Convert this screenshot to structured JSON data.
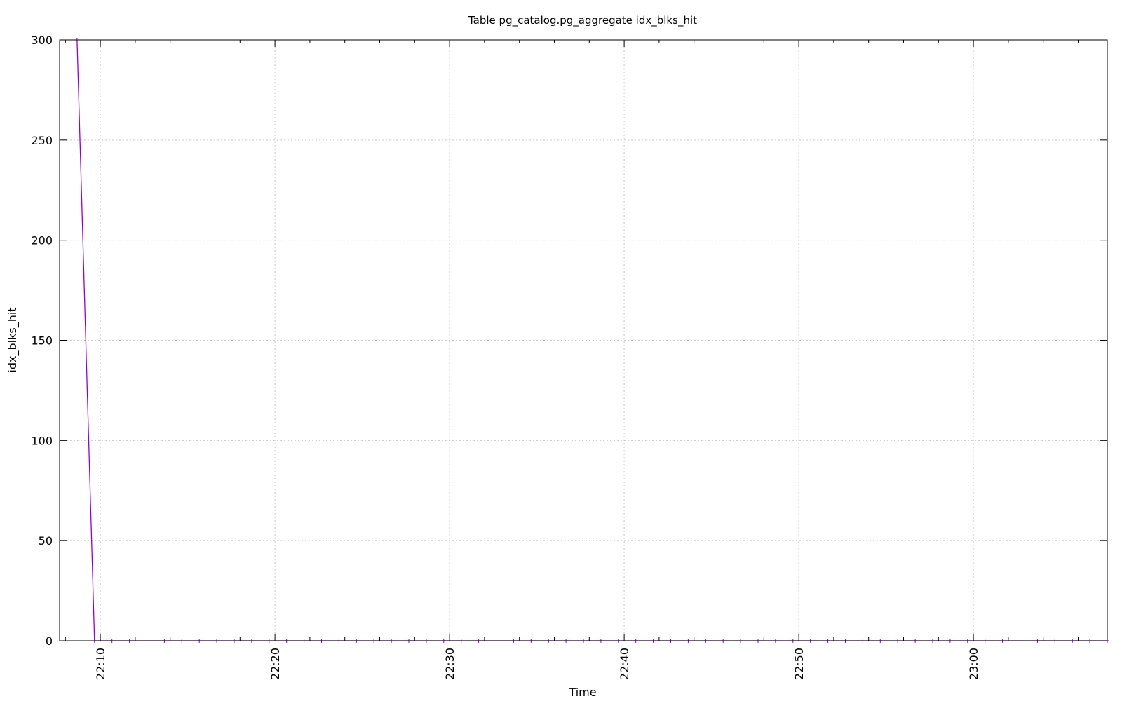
{
  "chart_data": {
    "type": "line",
    "title": "Table pg_catalog.pg_aggregate idx_blks_hit",
    "xlabel": "Time",
    "ylabel": "idx_blks_hit",
    "x_range": [
      "22:07:40",
      "22:67:40"
    ],
    "xlim": [
      "22:07:40",
      "23:07:40"
    ],
    "ylim": [
      0,
      300
    ],
    "y_ticks": [
      0,
      50,
      100,
      150,
      200,
      250,
      300
    ],
    "x_ticks": [
      "22:10",
      "22:20",
      "22:30",
      "22:40",
      "22:50",
      "23:00"
    ],
    "grid": true,
    "legend": "none",
    "series": [
      {
        "color": "#9400d3",
        "points": [
          [
            "22:08:40",
            300
          ],
          [
            "22:09:40",
            0
          ],
          [
            "22:10:40",
            0
          ],
          [
            "22:11:40",
            0
          ],
          [
            "22:12:40",
            0
          ],
          [
            "22:13:40",
            0
          ],
          [
            "22:14:40",
            0
          ],
          [
            "22:15:40",
            0
          ],
          [
            "22:16:40",
            0
          ],
          [
            "22:17:40",
            0
          ],
          [
            "22:18:40",
            0
          ],
          [
            "22:19:40",
            0
          ],
          [
            "22:20:40",
            0
          ],
          [
            "22:21:40",
            0
          ],
          [
            "22:22:40",
            0
          ],
          [
            "22:23:40",
            0
          ],
          [
            "22:24:40",
            0
          ],
          [
            "22:25:40",
            0
          ],
          [
            "22:26:40",
            0
          ],
          [
            "22:27:40",
            0
          ],
          [
            "22:28:40",
            0
          ],
          [
            "22:29:40",
            0
          ],
          [
            "22:30:40",
            0
          ],
          [
            "22:31:40",
            0
          ],
          [
            "22:32:40",
            0
          ],
          [
            "22:33:40",
            0
          ],
          [
            "22:34:40",
            0
          ],
          [
            "22:35:40",
            0
          ],
          [
            "22:36:40",
            0
          ],
          [
            "22:37:40",
            0
          ],
          [
            "22:38:40",
            0
          ],
          [
            "22:39:40",
            0
          ],
          [
            "22:40:40",
            0
          ],
          [
            "22:41:40",
            0
          ],
          [
            "22:42:40",
            0
          ],
          [
            "22:43:40",
            0
          ],
          [
            "22:44:40",
            0
          ],
          [
            "22:45:40",
            0
          ],
          [
            "22:46:40",
            0
          ],
          [
            "22:47:40",
            0
          ],
          [
            "22:48:40",
            0
          ],
          [
            "22:49:40",
            0
          ],
          [
            "22:50:40",
            0
          ],
          [
            "22:51:40",
            0
          ],
          [
            "22:52:40",
            0
          ],
          [
            "22:53:40",
            0
          ],
          [
            "22:54:40",
            0
          ],
          [
            "22:55:40",
            0
          ],
          [
            "22:56:40",
            0
          ],
          [
            "22:57:40",
            0
          ],
          [
            "22:58:40",
            0
          ],
          [
            "22:59:40",
            0
          ],
          [
            "23:00:40",
            0
          ],
          [
            "23:01:40",
            0
          ],
          [
            "23:02:40",
            0
          ],
          [
            "23:03:40",
            0
          ],
          [
            "23:04:40",
            0
          ],
          [
            "23:05:40",
            0
          ],
          [
            "23:06:40",
            0
          ],
          [
            "23:07:40",
            0
          ]
        ]
      }
    ]
  }
}
